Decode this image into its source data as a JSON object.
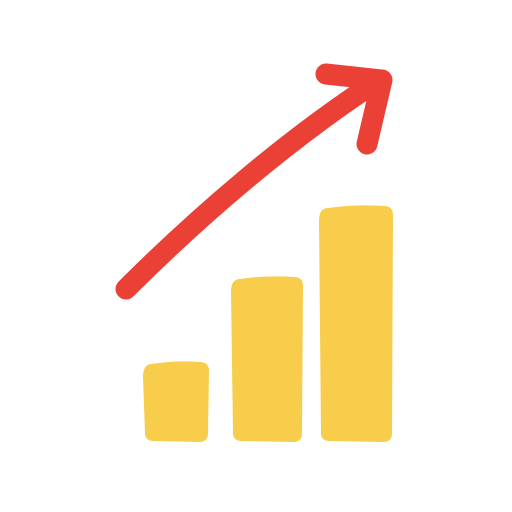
{
  "icon": {
    "name": "growth-chart-icon",
    "trend": "upward",
    "colors": {
      "bar": "#f7cd4b",
      "arrow": "#ea4036",
      "background": "#ffffff"
    },
    "bars": [
      {
        "name": "bar-small",
        "level": 0.34
      },
      {
        "name": "bar-medium",
        "level": 0.7
      },
      {
        "name": "bar-large",
        "level": 1.0
      }
    ]
  }
}
